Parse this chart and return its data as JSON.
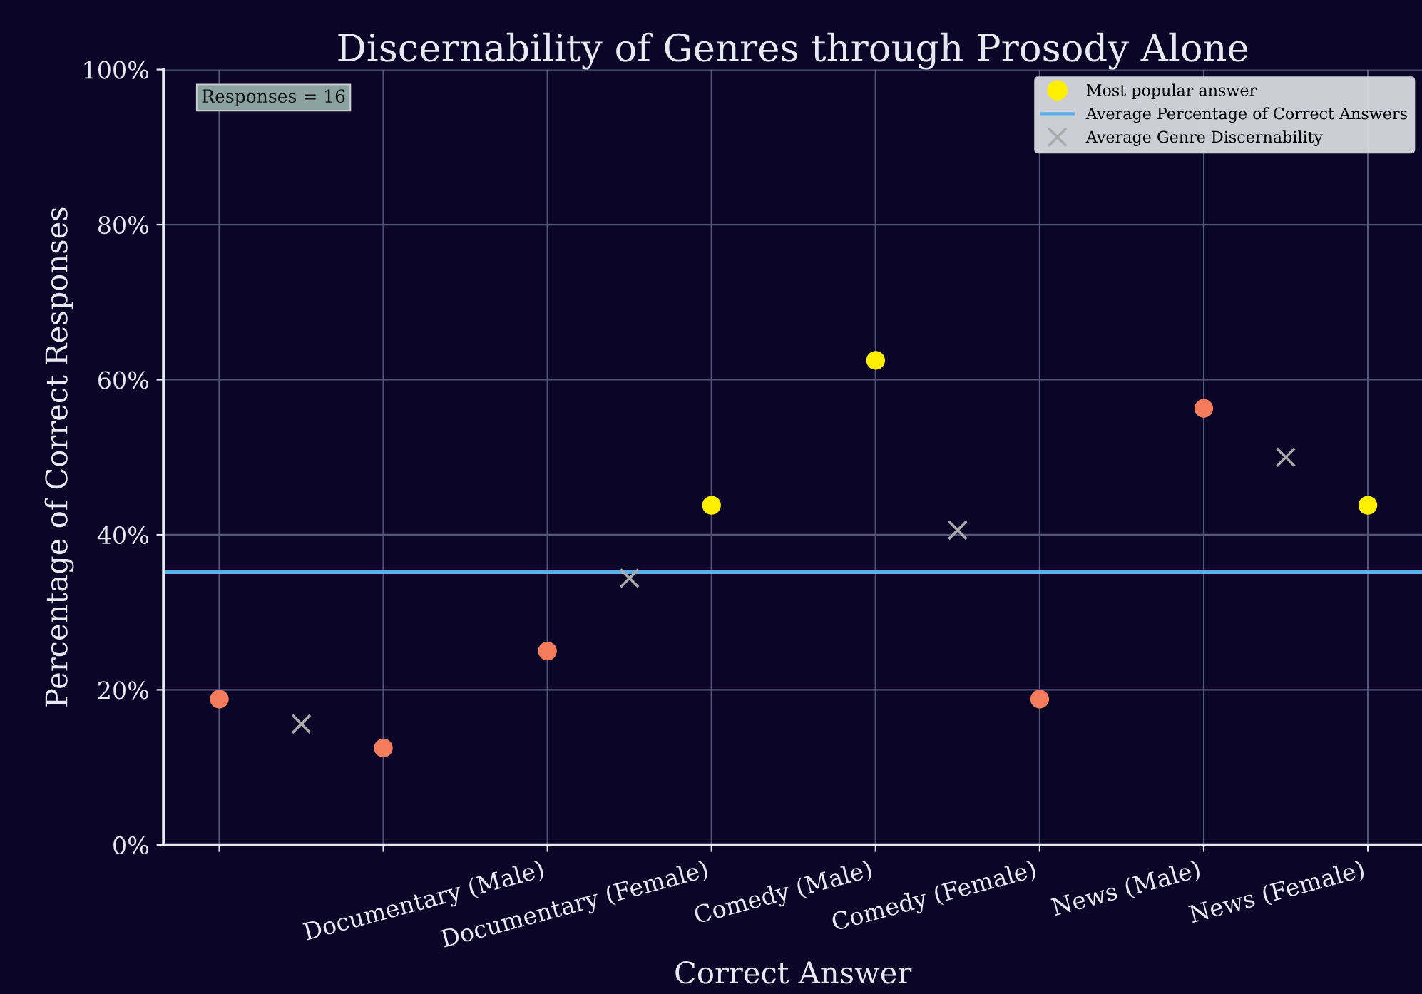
{
  "chart_data": {
    "type": "scatter",
    "title": "Discernability of Genres through Prosody Alone",
    "xlabel": "Correct Answer",
    "ylabel": "Percentage of Correct Responses",
    "categories": [
      null,
      null,
      null,
      null,
      "Documentary (Male)",
      null,
      "Documentary (Female)",
      null,
      "Comedy (Male)",
      null,
      "Comedy (Female)",
      null,
      "News (Male)",
      null,
      "News (Female)"
    ],
    "series": [
      {
        "color": "#f47c5c",
        "marker": "circle",
        "values": [
          18.8,
          null,
          12.5,
          null,
          25,
          null,
          null,
          null,
          null,
          null,
          18.8,
          null,
          56.3,
          null,
          null
        ]
      },
      {
        "name": "Most popular answer",
        "color": "#ffee00",
        "marker": "circle",
        "values": [
          null,
          null,
          null,
          null,
          null,
          null,
          43.8,
          null,
          62.5,
          null,
          null,
          null,
          null,
          null,
          43.8
        ]
      },
      {
        "name": "Average Genre Discernability",
        "color": "#aaaaaa",
        "marker": "cross",
        "values": [
          null,
          15.6,
          null,
          null,
          null,
          34.4,
          null,
          null,
          null,
          40.6,
          null,
          null,
          null,
          50,
          null
        ]
      }
    ],
    "ref_lines": [
      {
        "axis": "y",
        "value": 35.2,
        "label": "Average Percentage of Correct Answers",
        "color": "#5aaeea"
      }
    ],
    "ylim": [
      0,
      100
    ],
    "yticks": [
      {
        "value": 0,
        "label": "0%"
      },
      {
        "value": 20,
        "label": "20%"
      },
      {
        "value": 40,
        "label": "40%"
      },
      {
        "value": 60,
        "label": "60%"
      },
      {
        "value": 80,
        "label": "80%"
      },
      {
        "value": 100,
        "label": "100%"
      }
    ],
    "annotations": [
      "Responses = 16"
    ],
    "grid": true,
    "legend": "top right"
  }
}
